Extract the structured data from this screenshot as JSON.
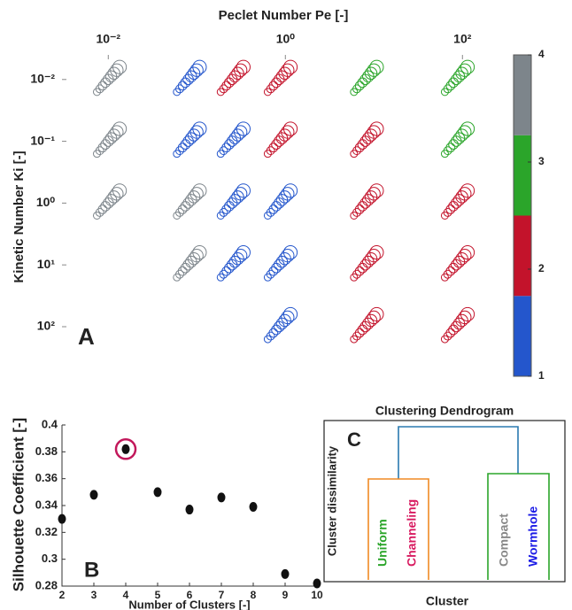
{
  "chart_data": [
    {
      "type": "scatter",
      "xlabel": "Peclet Number Pe [-]",
      "ylabel": "Kinetic Number Ki [-]",
      "panel": "A",
      "xlog": true,
      "ylog": true,
      "y_inverted": true,
      "xlim": [
        0.003,
        300
      ],
      "ylim": [
        0.004,
        700
      ],
      "xticks": [
        {
          "value": 0.01,
          "label": "10⁻²"
        },
        {
          "value": 1,
          "label": "10⁰"
        },
        {
          "value": 100,
          "label": "10²"
        }
      ],
      "yticks": [
        {
          "value": 0.01,
          "label": "10⁻²"
        },
        {
          "value": 0.1,
          "label": "10⁻¹"
        },
        {
          "value": 1,
          "label": "10⁰"
        },
        {
          "value": 10,
          "label": "10¹"
        },
        {
          "value": 100,
          "label": "10²"
        }
      ],
      "x": [
        0.01,
        0.08,
        0.25,
        0.85,
        8,
        85,
        0.01,
        0.08,
        0.25,
        0.85,
        8,
        85,
        0.01,
        0.08,
        0.25,
        0.85,
        8,
        85,
        0.08,
        0.25,
        0.85,
        8,
        85,
        0.85,
        8,
        85
      ],
      "y": [
        0.01,
        0.01,
        0.01,
        0.01,
        0.01,
        0.01,
        0.1,
        0.1,
        0.1,
        0.1,
        0.1,
        0.1,
        1,
        1,
        1,
        1,
        1,
        1,
        10,
        10,
        10,
        10,
        10,
        100,
        100,
        100
      ],
      "cluster": [
        4,
        1,
        2,
        2,
        3,
        3,
        4,
        1,
        1,
        2,
        2,
        3,
        4,
        4,
        1,
        1,
        2,
        2,
        4,
        1,
        1,
        2,
        2,
        1,
        2,
        2
      ],
      "colorbar": {
        "clim": [
          1,
          4
        ],
        "ticks": [
          1,
          2,
          3,
          4
        ],
        "colors": [
          "#2456cc",
          "#c3132b",
          "#2ba52a",
          "#7d858b"
        ]
      }
    },
    {
      "type": "scatter",
      "xlabel": "Number of Clusters [-]",
      "ylabel": "Silhouette Coefficient [-]",
      "panel": "B",
      "xlim": [
        2,
        10
      ],
      "ylim": [
        0.28,
        0.4
      ],
      "xticks": [
        2,
        3,
        4,
        5,
        6,
        7,
        8,
        9,
        10
      ],
      "yticks": [
        0.28,
        0.3,
        0.32,
        0.34,
        0.36,
        0.38,
        0.4
      ],
      "x": [
        2,
        3,
        4,
        5,
        6,
        7,
        8,
        9,
        10
      ],
      "y": [
        0.33,
        0.348,
        0.382,
        0.35,
        0.337,
        0.346,
        0.339,
        0.289,
        0.282
      ],
      "color": "#111111",
      "highlight_x": 4,
      "highlight_color": "#c2185b"
    },
    {
      "type": "dendrogram",
      "title": "Clustering Dendrogram",
      "xlabel": "Cluster",
      "ylabel": "Cluster dissimilarity",
      "panel": "C",
      "leaves": [
        {
          "name": "Uniform",
          "color": "#2ba52a"
        },
        {
          "name": "Channeling",
          "color": "#d81b60"
        },
        {
          "name": "Compact",
          "color": "#888888"
        },
        {
          "name": "Wormhole",
          "color": "#1a1ae6"
        }
      ]
    }
  ]
}
